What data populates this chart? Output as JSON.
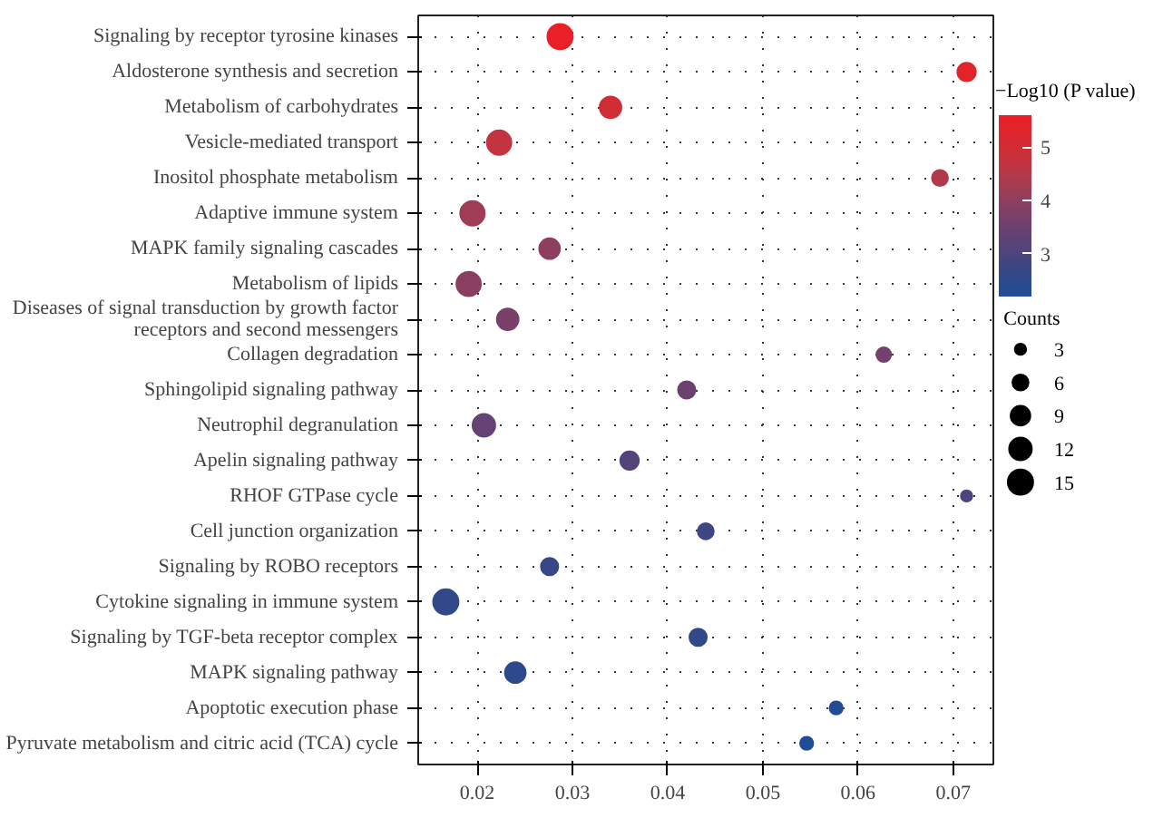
{
  "chart_data": {
    "type": "bubble",
    "orientation": "horizontal",
    "categories": [
      "Signaling by receptor tyrosine kinases",
      "Aldosterone synthesis and secretion",
      "Metabolism of carbohydrates",
      "Vesicle-mediated transport",
      "Inositol phosphate metabolism",
      "Adaptive immune system",
      "MAPK family signaling cascades",
      "Metabolism of lipids",
      "Diseases of signal transduction by growth factor\nreceptors and second messengers",
      "Collagen degradation",
      "Sphingolipid signaling pathway",
      "Neutrophil degranulation",
      "Apelin signaling pathway",
      "RHOF GTPase cycle",
      "Cell junction organization",
      "Signaling by ROBO receptors",
      "Cytokine signaling in immune system",
      "Signaling by TGF-beta receptor complex",
      "MAPK signaling pathway",
      "Apoptotic execution phase",
      "Pyruvate metabolism and citric acid (TCA) cycle"
    ],
    "values": [
      0.0287,
      0.0714,
      0.034,
      0.0223,
      0.0686,
      0.0195,
      0.0276,
      0.0191,
      0.0232,
      0.0627,
      0.042,
      0.0207,
      0.036,
      0.0714,
      0.044,
      0.0276,
      0.0167,
      0.0432,
      0.024,
      0.0577,
      0.0546
    ],
    "sizes": [
      15,
      8,
      11,
      14,
      6,
      14,
      10,
      14,
      11,
      5,
      7,
      12,
      8,
      3,
      6,
      7,
      15,
      7,
      10,
      4,
      4
    ],
    "size_legend": [
      3,
      6,
      9,
      12,
      15
    ],
    "legend_title": "Counts",
    "cvalues": [
      5.5,
      5.4,
      5.0,
      4.7,
      4.5,
      4.2,
      4.0,
      3.9,
      3.7,
      3.6,
      3.5,
      3.4,
      3.1,
      3.0,
      2.8,
      2.7,
      2.6,
      2.6,
      2.5,
      2.3,
      2.2
    ],
    "colors": [
      "#eb1f28",
      "#e42329",
      "#d12d35",
      "#c33440",
      "#b3394a",
      "#9e3d55",
      "#8f3f5e",
      "#883f62",
      "#7b4068",
      "#74406c",
      "#6c416f",
      "#654273",
      "#53447a",
      "#4d457d",
      "#3e4783",
      "#384886",
      "#324989",
      "#324989",
      "#2d4a8c",
      "#244c93",
      "#1f4d96"
    ],
    "clim": [
      2.2,
      5.6
    ],
    "cticks": [
      3,
      4,
      5
    ],
    "clabel": "−Log10 (P value)",
    "xlim": [
      0.0138,
      0.0744
    ],
    "xticks": [
      0.02,
      0.03,
      0.04,
      0.05,
      0.06,
      0.07
    ],
    "grid": true,
    "line_style": "dotted"
  }
}
